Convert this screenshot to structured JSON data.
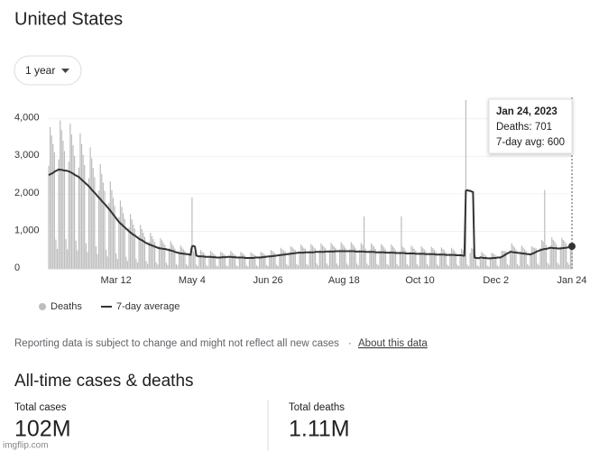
{
  "header": {
    "title": "United States",
    "range": "1 year"
  },
  "chart_data": {
    "type": "bar",
    "categories": [
      null,
      null,
      null,
      null,
      null,
      null,
      null,
      null,
      null,
      null,
      null,
      null,
      null,
      null,
      null,
      null,
      null,
      null,
      null,
      null,
      null,
      null,
      null,
      null,
      null,
      null,
      null,
      null,
      null,
      null,
      null,
      null,
      null,
      null,
      null,
      null,
      null,
      null,
      null,
      null,
      null,
      null,
      null,
      null,
      null,
      null,
      null,
      "Mar 12",
      null,
      null,
      null,
      null,
      null,
      null,
      null,
      null,
      null,
      null,
      null,
      null,
      null,
      null,
      null,
      null,
      null,
      null,
      null,
      null,
      null,
      null,
      null,
      null,
      null,
      null,
      null,
      null,
      null,
      null,
      null,
      null,
      null,
      null,
      null,
      null,
      null,
      null,
      null,
      null,
      null,
      null,
      null,
      null,
      null,
      null,
      null,
      null,
      null,
      null,
      null,
      null,
      "May 4",
      null,
      null,
      null,
      null,
      null,
      null,
      null,
      null,
      null,
      null,
      null,
      null,
      null,
      null,
      null,
      null,
      null,
      null,
      null,
      null,
      null,
      null,
      null,
      null,
      null,
      null,
      null,
      null,
      null,
      null,
      null,
      null,
      null,
      null,
      null,
      null,
      null,
      null,
      null,
      null,
      null,
      null,
      null,
      null,
      null,
      null,
      null,
      null,
      null,
      null,
      null,
      null,
      "Jun 26",
      null,
      null,
      null,
      null,
      null,
      null,
      null,
      null,
      null,
      null,
      null,
      null,
      null,
      null,
      null,
      null,
      null,
      null,
      null,
      null,
      null,
      null,
      null,
      null,
      null,
      null,
      null,
      null,
      null,
      null,
      null,
      null,
      null,
      null,
      null,
      null,
      null,
      null,
      null,
      null,
      null,
      null,
      null,
      null,
      null,
      null,
      null,
      null,
      null,
      null,
      null,
      null,
      "Aug 18",
      null,
      null,
      null,
      null,
      null,
      null,
      null,
      null,
      null,
      null,
      null,
      null,
      null,
      null,
      null,
      null,
      null,
      null,
      null,
      null,
      null,
      null,
      null,
      null,
      null,
      null,
      null,
      null,
      null,
      null,
      null,
      null,
      null,
      null,
      null,
      null,
      null,
      null,
      null,
      null,
      null,
      null,
      null,
      null,
      null,
      null,
      null,
      null,
      null,
      null,
      null,
      null,
      "Oct 10",
      null,
      null,
      null,
      null,
      null,
      null,
      null,
      null,
      null,
      null,
      null,
      null,
      null,
      null,
      null,
      null,
      null,
      null,
      null,
      null,
      null,
      null,
      null,
      null,
      null,
      null,
      null,
      null,
      null,
      null,
      null,
      null,
      null,
      null,
      null,
      null,
      null,
      null,
      null,
      null,
      null,
      null,
      null,
      null,
      null,
      null,
      null,
      null,
      null,
      null,
      null,
      null,
      "Dec 2",
      null,
      null,
      null,
      null,
      null,
      null,
      null,
      null,
      null,
      null,
      null,
      null,
      null,
      null,
      null,
      null,
      null,
      null,
      null,
      null,
      null,
      null,
      null,
      null,
      null,
      null,
      null,
      null,
      null,
      null,
      null,
      null,
      null,
      null,
      null,
      null,
      null,
      null,
      null,
      null,
      null,
      null,
      null,
      null,
      null,
      null,
      null,
      null,
      null,
      null,
      null,
      null,
      "Jan 24"
    ],
    "series": [
      {
        "name": "Deaths",
        "type": "bar",
        "color": "#bdbdbd",
        "values": [
          2750,
          3780,
          3560,
          3330,
          3110,
          780,
          530,
          2920,
          3960,
          3700,
          3420,
          3140,
          790,
          520,
          2860,
          3870,
          3580,
          3300,
          3010,
          750,
          490,
          2700,
          3620,
          3330,
          3040,
          2770,
          680,
          450,
          2420,
          3240,
          2950,
          2690,
          2440,
          600,
          390,
          2090,
          2790,
          2530,
          2300,
          2080,
          510,
          330,
          1760,
          2330,
          2100,
          1890,
          1680,
          410,
          260,
          1380,
          1820,
          1650,
          1480,
          1330,
          320,
          210,
          1100,
          1460,
          1320,
          1180,
          1070,
          260,
          170,
          880,
          1170,
          1060,
          960,
          850,
          210,
          130,
          720,
          960,
          870,
          790,
          710,
          170,
          110,
          610,
          810,
          760,
          690,
          640,
          160,
          100,
          550,
          740,
          670,
          610,
          540,
          130,
          90,
          460,
          620,
          570,
          520,
          480,
          120,
          80,
          420,
          560,
          1900,
          470,
          430,
          110,
          70,
          360,
          500,
          460,
          430,
          380,
          100,
          60,
          350,
          480,
          430,
          400,
          370,
          90,
          60,
          330,
          450,
          430,
          400,
          370,
          90,
          60,
          350,
          480,
          430,
          400,
          370,
          90,
          60,
          330,
          450,
          420,
          390,
          350,
          90,
          60,
          320,
          440,
          410,
          380,
          360,
          90,
          60,
          330,
          450,
          430,
          400,
          380,
          100,
          70,
          360,
          500,
          480,
          440,
          420,
          110,
          70,
          400,
          560,
          520,
          490,
          460,
          120,
          80,
          440,
          600,
          570,
          530,
          500,
          130,
          90,
          470,
          650,
          600,
          560,
          530,
          130,
          90,
          480,
          660,
          620,
          570,
          540,
          140,
          90,
          500,
          680,
          630,
          590,
          550,
          140,
          90,
          510,
          690,
          640,
          600,
          560,
          140,
          90,
          520,
          710,
          660,
          610,
          560,
          140,
          90,
          520,
          710,
          660,
          610,
          550,
          140,
          90,
          510,
          690,
          640,
          1400,
          540,
          140,
          90,
          500,
          680,
          630,
          590,
          530,
          130,
          90,
          480,
          660,
          620,
          570,
          520,
          130,
          90,
          470,
          650,
          600,
          560,
          500,
          130,
          80,
          460,
          1400,
          590,
          550,
          490,
          120,
          80,
          450,
          620,
          570,
          530,
          480,
          120,
          80,
          440,
          600,
          560,
          520,
          470,
          120,
          80,
          430,
          590,
          550,
          510,
          460,
          110,
          80,
          420,
          570,
          530,
          490,
          440,
          110,
          70,
          410,
          560,
          520,
          480,
          430,
          110,
          70,
          400,
          540,
          490,
          460,
          4500,
          110,
          70,
          420,
          560,
          530,
          390,
          350,
          90,
          60,
          330,
          450,
          410,
          380,
          350,
          80,
          60,
          310,
          420,
          410,
          380,
          350,
          90,
          60,
          330,
          480,
          480,
          470,
          470,
          120,
          90,
          500,
          680,
          620,
          570,
          520,
          130,
          80,
          460,
          620,
          570,
          520,
          480,
          120,
          80,
          420,
          600,
          570,
          560,
          540,
          140,
          100,
          550,
          770,
          730,
          2100,
          640,
          160,
          110,
          620,
          840,
          770,
          720,
          660,
          160,
          110,
          590,
          830,
          770,
          730,
          670,
          170,
          110,
          640,
          701
        ]
      },
      {
        "name": "7-day average",
        "type": "line",
        "color": "#333333",
        "values": [
          2500,
          2520,
          2540,
          2560,
          2590,
          2610,
          2630,
          2650,
          2640,
          2640,
          2630,
          2620,
          2620,
          2610,
          2600,
          2580,
          2560,
          2540,
          2510,
          2490,
          2470,
          2450,
          2410,
          2380,
          2340,
          2310,
          2270,
          2240,
          2200,
          2160,
          2110,
          2070,
          2030,
          1990,
          1940,
          1900,
          1860,
          1810,
          1770,
          1730,
          1690,
          1640,
          1600,
          1550,
          1500,
          1450,
          1400,
          1350,
          1300,
          1250,
          1210,
          1180,
          1140,
          1110,
          1070,
          1040,
          1000,
          970,
          940,
          910,
          890,
          860,
          830,
          800,
          780,
          760,
          740,
          710,
          690,
          670,
          650,
          640,
          620,
          610,
          590,
          580,
          560,
          550,
          540,
          540,
          530,
          530,
          520,
          510,
          500,
          490,
          480,
          470,
          450,
          440,
          430,
          420,
          410,
          410,
          400,
          400,
          390,
          390,
          380,
          370,
          600,
          610,
          590,
          350,
          340,
          330,
          330,
          330,
          330,
          320,
          320,
          320,
          320,
          320,
          310,
          310,
          310,
          300,
          300,
          300,
          300,
          310,
          310,
          310,
          310,
          320,
          320,
          320,
          310,
          310,
          310,
          300,
          300,
          300,
          300,
          300,
          300,
          290,
          290,
          290,
          290,
          290,
          290,
          290,
          300,
          300,
          300,
          300,
          300,
          310,
          310,
          320,
          320,
          330,
          330,
          330,
          340,
          340,
          350,
          350,
          360,
          360,
          370,
          370,
          380,
          380,
          390,
          390,
          400,
          400,
          410,
          410,
          420,
          420,
          430,
          430,
          430,
          430,
          430,
          440,
          440,
          440,
          440,
          440,
          440,
          440,
          450,
          450,
          450,
          450,
          450,
          450,
          450,
          460,
          460,
          460,
          460,
          460,
          460,
          460,
          470,
          470,
          470,
          470,
          470,
          470,
          470,
          470,
          470,
          470,
          470,
          470,
          470,
          470,
          460,
          460,
          460,
          460,
          460,
          460,
          460,
          450,
          450,
          450,
          450,
          450,
          450,
          450,
          440,
          440,
          440,
          440,
          440,
          440,
          440,
          430,
          430,
          430,
          430,
          430,
          430,
          430,
          420,
          420,
          420,
          420,
          420,
          420,
          420,
          410,
          410,
          410,
          410,
          410,
          410,
          410,
          400,
          400,
          400,
          400,
          400,
          400,
          400,
          390,
          390,
          390,
          390,
          390,
          390,
          390,
          380,
          380,
          380,
          380,
          380,
          380,
          380,
          370,
          370,
          370,
          370,
          370,
          370,
          370,
          360,
          360,
          360,
          360,
          360,
          350,
          350,
          2080,
          2100,
          2080,
          2080,
          2060,
          2050,
          300,
          290,
          290,
          280,
          300,
          300,
          290,
          290,
          290,
          280,
          280,
          280,
          280,
          290,
          290,
          290,
          300,
          300,
          300,
          320,
          340,
          360,
          390,
          410,
          430,
          450,
          450,
          440,
          440,
          430,
          430,
          420,
          420,
          410,
          410,
          400,
          400,
          390,
          390,
          380,
          400,
          410,
          430,
          450,
          470,
          480,
          500,
          510,
          520,
          530,
          530,
          540,
          550,
          560,
          560,
          550,
          550,
          550,
          540,
          540,
          540,
          550,
          550,
          560,
          560,
          570,
          570,
          580,
          600
        ]
      }
    ],
    "ylim": [
      0,
      4500
    ],
    "yticks": [
      0,
      {
        "value": 1000,
        "label": "1,000"
      },
      {
        "value": 2000,
        "label": "2,000"
      },
      {
        "value": 3000,
        "label": "3,000"
      },
      {
        "value": 4000,
        "label": "4,000"
      }
    ],
    "grid": true,
    "tooltip": {
      "title": "Jan 24, 2023",
      "lines": [
        "Deaths: 701",
        "7-day avg: 600"
      ]
    }
  },
  "note": {
    "text": "Reporting data is subject to change and might not reflect all new cases",
    "separator": "·",
    "link": "About this data"
  },
  "totals": {
    "title": "All-time cases & deaths",
    "items": [
      {
        "label": "Total cases",
        "value": "102M"
      },
      {
        "label": "Total deaths",
        "value": "1.11M"
      }
    ]
  },
  "watermark": "imgflip.com"
}
